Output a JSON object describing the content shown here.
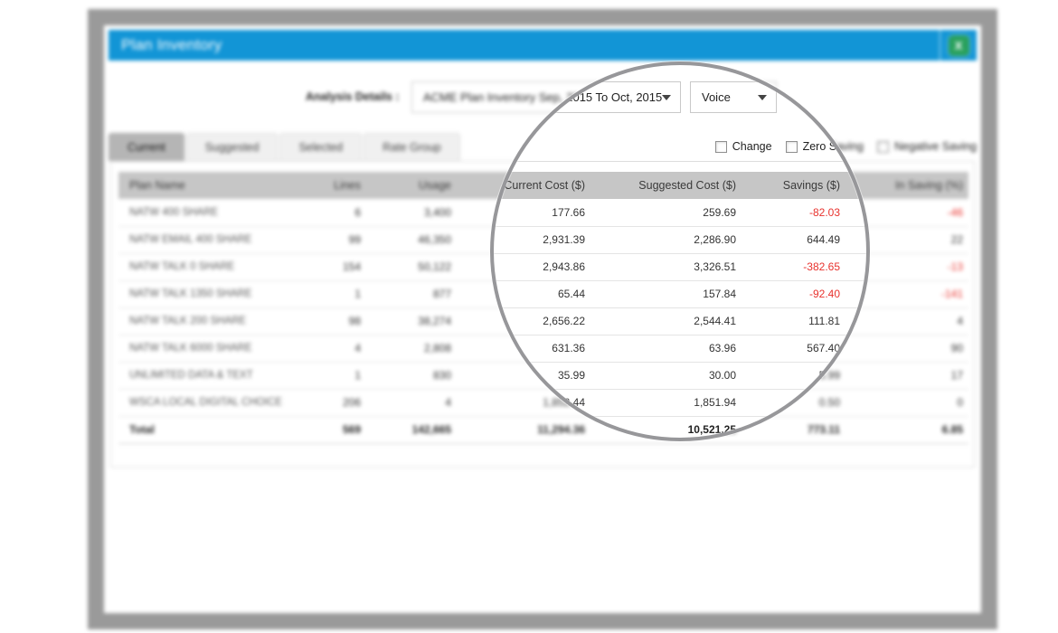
{
  "header": {
    "title": "Plan Inventory",
    "export_icon_label": "X"
  },
  "analysis": {
    "label": "Analysis Details :",
    "report_selected": "ACME Plan Inventory Sep, 2015 To Oct, 2015",
    "type_selected": "Voice"
  },
  "tabs": [
    {
      "label": "Current",
      "active": true
    },
    {
      "label": "Suggested",
      "active": false
    },
    {
      "label": "Selected",
      "active": false
    },
    {
      "label": "Rate Group",
      "active": false
    }
  ],
  "filters": [
    {
      "label": "Change",
      "checked": false
    },
    {
      "label": "Zero Saving",
      "checked": false
    },
    {
      "label": "Negative Saving",
      "checked": false
    }
  ],
  "table": {
    "columns": [
      "Plan Name",
      "Lines",
      "Usage",
      "Current Cost ($)",
      "Suggested Cost ($)",
      "Savings ($)",
      "In Saving (%)"
    ],
    "rows": [
      {
        "plan": "NATW 400 SHARE",
        "lines": "6",
        "usage": "3,400",
        "current": "177.66",
        "suggested": "259.69",
        "savings": "-82.03",
        "in_saving": "-46"
      },
      {
        "plan": "NATW EMAIL 400 SHARE",
        "lines": "99",
        "usage": "46,350",
        "current": "2,931.39",
        "suggested": "2,286.90",
        "savings": "644.49",
        "in_saving": "22"
      },
      {
        "plan": "NATW TALK 0 SHARE",
        "lines": "154",
        "usage": "50,122",
        "current": "2,943.86",
        "suggested": "3,326.51",
        "savings": "-382.65",
        "in_saving": "-13"
      },
      {
        "plan": "NATW TALK 1350 SHARE",
        "lines": "1",
        "usage": "877",
        "current": "65.44",
        "suggested": "157.84",
        "savings": "-92.40",
        "in_saving": "-141"
      },
      {
        "plan": "NATW TALK 200 SHARE",
        "lines": "98",
        "usage": "38,274",
        "current": "2,656.22",
        "suggested": "2,544.41",
        "savings": "111.81",
        "in_saving": "4"
      },
      {
        "plan": "NATW TALK 6000 SHARE",
        "lines": "4",
        "usage": "2,808",
        "current": "631.36",
        "suggested": "63.96",
        "savings": "567.40",
        "in_saving": "90"
      },
      {
        "plan": "UNLIMITED DATA & TEXT",
        "lines": "1",
        "usage": "830",
        "current": "35.99",
        "suggested": "30.00",
        "savings": "5.99",
        "in_saving": "17"
      },
      {
        "plan": "WSCA LOCAL DIGITAL CHOICE",
        "lines": "206",
        "usage": "4",
        "current": "1,852.44",
        "suggested": "1,851.94",
        "savings": "0.50",
        "in_saving": "0"
      }
    ],
    "total": {
      "plan": "Total",
      "lines": "569",
      "usage": "142,665",
      "current": "11,294.36",
      "suggested": "10,521.25",
      "savings": "773.11",
      "in_saving": "6.85"
    }
  },
  "colors": {
    "accent_blue": "#1295d6",
    "negative_red": "#e8322d",
    "frame_gray": "#9a9a9a",
    "header_row_gray": "#c6c6c6",
    "excel_green": "#28a05c"
  }
}
